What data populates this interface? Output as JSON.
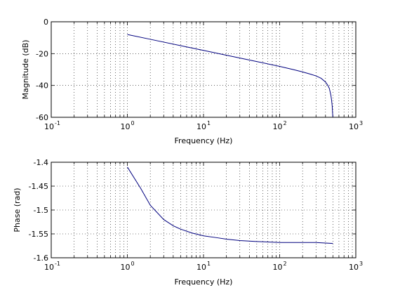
{
  "chart_data": [
    {
      "type": "line",
      "xscale": "log",
      "xlim": [
        0.1,
        1000
      ],
      "ylim": [
        -60,
        0
      ],
      "xticks": [
        {
          "base": "10",
          "exp": "-1"
        },
        {
          "base": "10",
          "exp": "0"
        },
        {
          "base": "10",
          "exp": "1"
        },
        {
          "base": "10",
          "exp": "2"
        },
        {
          "base": "10",
          "exp": "3"
        }
      ],
      "yticks": [
        "0",
        "-20",
        "-40",
        "-60"
      ],
      "ytick_values": [
        0,
        -20,
        -40,
        -60
      ],
      "xlabel": "Frequency (Hz)",
      "ylabel": "Magnitude (dB)",
      "grid": true,
      "line_color": "#00007f",
      "series": [
        {
          "x": [
            1,
            2,
            5,
            10,
            20,
            50,
            100,
            150,
            200,
            250,
            300,
            350,
            400,
            430,
            450,
            470,
            480,
            490,
            495,
            500
          ],
          "y": [
            -8,
            -11,
            -15,
            -18,
            -21,
            -25,
            -28,
            -30,
            -31.5,
            -32.8,
            -34,
            -35.5,
            -37.8,
            -40,
            -42,
            -46,
            -49,
            -53,
            -57,
            -60
          ]
        }
      ]
    },
    {
      "type": "line",
      "xscale": "log",
      "xlim": [
        0.1,
        1000
      ],
      "ylim": [
        -1.6,
        -1.4
      ],
      "xticks": [
        {
          "base": "10",
          "exp": "-1"
        },
        {
          "base": "10",
          "exp": "0"
        },
        {
          "base": "10",
          "exp": "1"
        },
        {
          "base": "10",
          "exp": "2"
        },
        {
          "base": "10",
          "exp": "3"
        }
      ],
      "yticks": [
        "-1.4",
        "-1.45",
        "-1.5",
        "-1.55",
        "-1.6"
      ],
      "ytick_values": [
        -1.4,
        -1.45,
        -1.5,
        -1.55,
        -1.6
      ],
      "xlabel": "Frequency (Hz)",
      "ylabel": "Phase (rad)",
      "grid": true,
      "line_color": "#00007f",
      "series": [
        {
          "x": [
            1,
            1.5,
            2,
            3,
            4,
            5,
            7,
            10,
            15,
            20,
            30,
            50,
            100,
            200,
            300,
            500
          ],
          "y": [
            -1.41,
            -1.455,
            -1.49,
            -1.52,
            -1.533,
            -1.54,
            -1.548,
            -1.554,
            -1.558,
            -1.561,
            -1.564,
            -1.566,
            -1.568,
            -1.568,
            -1.568,
            -1.57
          ]
        }
      ]
    }
  ]
}
